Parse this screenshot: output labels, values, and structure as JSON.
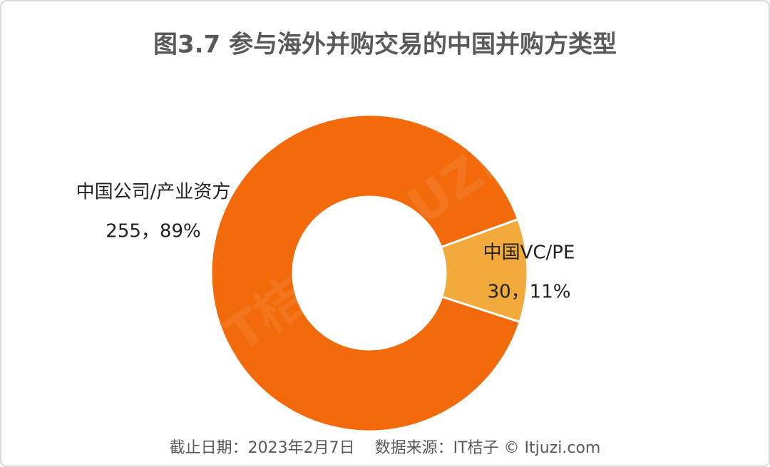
{
  "chart_data": {
    "type": "donut",
    "title": "图3.7 参与海外并购交易的中国并购方类型",
    "categories": [
      "中国公司/产业资方",
      "中国VC/PE"
    ],
    "values": [
      255,
      30
    ],
    "value_labels": [
      "255，89%",
      "30，11%"
    ],
    "colors": [
      "#f26a0a",
      "#f2aa3a"
    ],
    "watermark": "IT桔子 ITJUZI",
    "footer": "截止日期：2023年2月7日    数据来源：IT桔子 © Itjuzi.com"
  }
}
